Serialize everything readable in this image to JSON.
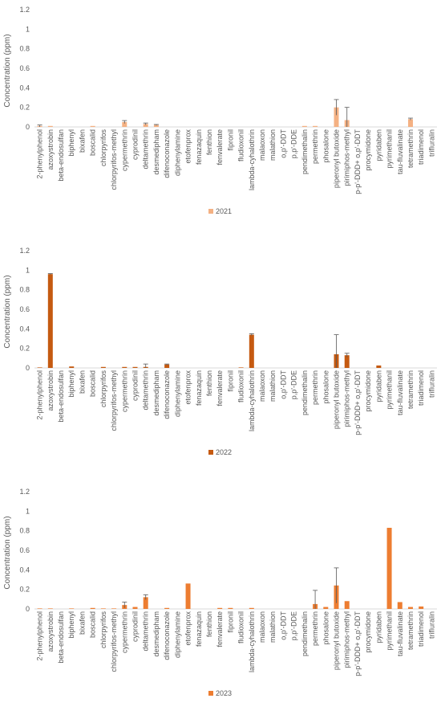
{
  "chart_data": [
    {
      "type": "bar",
      "title": "",
      "xlabel": "",
      "ylabel": "Concentration (ppm)",
      "ylim": [
        0,
        1.2
      ],
      "yticks": [
        "0",
        "0.2",
        "0.4",
        "0.6",
        "0.8",
        "1",
        "1.2"
      ],
      "categories": [
        "2-phenylphenol",
        "azoxystrobin",
        "beta-endosulfan",
        "biphenyl",
        "bixafen",
        "boscalid",
        "chlorpyrifos",
        "chlorpyrifos-methyl",
        "cypermethrin",
        "cyprodinil",
        "deltamethrin",
        "desmedipham",
        "difenoconazole",
        "diphenylamine",
        "etofenprox",
        "fenazaquin",
        "fenthion",
        "fenvalerate",
        "fipronil",
        "fludioxonil",
        "lambda-cyhalothrin",
        "malaoxon",
        "malathion",
        "o,p'-DDT",
        "p,p'-DDE",
        "pendimethalin",
        "permethrin",
        "phosalone",
        "piperonyl butoxide",
        "pirimiphos-methyl",
        "p-p'-DDD+ o,p'-DDT",
        "procymidone",
        "pyridaben",
        "pyrimethanil",
        "tau-fluvalinate",
        "tetramethrin",
        "triadimenol",
        "trifluralin"
      ],
      "series": [
        {
          "name": "2021",
          "color": "#f4b183",
          "values": [
            0.01,
            0.01,
            0,
            0,
            0,
            0.01,
            0,
            0,
            0.05,
            0,
            0.03,
            0.02,
            0,
            0,
            0,
            0,
            0,
            0,
            0,
            0,
            0,
            0,
            0,
            0,
            0,
            0.01,
            0.01,
            0,
            0.2,
            0.07,
            0,
            0,
            0,
            0,
            0,
            0.08,
            0,
            0
          ],
          "errors": [
            0.01,
            0,
            0,
            0,
            0,
            0,
            0,
            0,
            0.015,
            0,
            0.01,
            0.005,
            0,
            0,
            0,
            0,
            0,
            0,
            0,
            0,
            0,
            0,
            0,
            0,
            0,
            0,
            0,
            0,
            0.08,
            0.13,
            0,
            0,
            0,
            0,
            0,
            0.01,
            0,
            0
          ]
        }
      ],
      "legend": "bottom"
    },
    {
      "type": "bar",
      "title": "",
      "xlabel": "",
      "ylabel": "Concentration (ppm)",
      "ylim": [
        0,
        1.2
      ],
      "yticks": [
        "0",
        "0.2",
        "0.4",
        "0.6",
        "0.8",
        "1",
        "1.2"
      ],
      "categories": [
        "2-phenylphenol",
        "azoxystrobin",
        "beta-endosulfan",
        "biphenyl",
        "bixafen",
        "boscalid",
        "chlorpyrifos",
        "chlorpyrifos-methyl",
        "cypermethrin",
        "cyprodinil",
        "deltamethrin",
        "desmedipham",
        "difenoconazole",
        "diphenylamine",
        "etofenprox",
        "fenazaquin",
        "fenthion",
        "fenvalerate",
        "fipronil",
        "fludioxonil",
        "lambda-cyhalothrin",
        "malaoxon",
        "malathion",
        "o,p'-DDT",
        "p,p'-DDE",
        "pendimethalin",
        "permethrin",
        "phosalone",
        "piperonyl butoxide",
        "pirimiphos-methyl",
        "p-p'-DDD+ o,p'-DDT",
        "procymidone",
        "pyridaben",
        "pyrimethanil",
        "tau-fluvalinate",
        "tetramethrin",
        "triadimenol",
        "trifluralin"
      ],
      "series": [
        {
          "name": "2022",
          "color": "#c55a11",
          "values": [
            0.005,
            0.96,
            0,
            0.015,
            0,
            0,
            0.01,
            0,
            0.01,
            0.01,
            0.01,
            0,
            0.035,
            0,
            0,
            0,
            0,
            0,
            0,
            0.005,
            0.34,
            0,
            0,
            0,
            0,
            0,
            0,
            0,
            0.14,
            0.13,
            0,
            0,
            0.025,
            0,
            0,
            0,
            0,
            0
          ],
          "errors": [
            0,
            0.005,
            0,
            0,
            0,
            0,
            0,
            0,
            0,
            0,
            0.03,
            0,
            0.005,
            0,
            0,
            0,
            0,
            0,
            0,
            0,
            0.01,
            0,
            0,
            0,
            0,
            0,
            0,
            0,
            0.2,
            0.02,
            0,
            0,
            0,
            0,
            0,
            0,
            0,
            0
          ]
        }
      ],
      "legend": "bottom"
    },
    {
      "type": "bar",
      "title": "",
      "xlabel": "",
      "ylabel": "Concentration (ppm)",
      "ylim": [
        0,
        1.2
      ],
      "yticks": [
        "0",
        "0.2",
        "0.4",
        "0.6",
        "0.8",
        "1",
        "1.2"
      ],
      "categories": [
        "2-phenylphenol",
        "azoxystrobin",
        "beta-endosulfan",
        "biphenyl",
        "bixafen",
        "boscalid",
        "chlorpyrifos",
        "chlorpyrifos-methyl",
        "cypermethrin",
        "cyprodinil",
        "deltamethrin",
        "desmedipham",
        "difenoconazole",
        "diphenylamine",
        "etofenprox",
        "fenazaquin",
        "fenthion",
        "fenvalerate",
        "fipronil",
        "fludioxonil",
        "lambda-cyhalothrin",
        "malaoxon",
        "malathion",
        "o,p'-DDT",
        "p,p'-DDE",
        "pendimethalin",
        "permethrin",
        "phosalone",
        "piperonyl butoxide",
        "pirimiphos-methyl",
        "p-p'-DDD+ o,p'-DDT",
        "procymidone",
        "pyridaben",
        "pyrimethanil",
        "tau-fluvalinate",
        "tetramethrin",
        "triadimenol",
        "trifluralin"
      ],
      "series": [
        {
          "name": "2023",
          "color": "#ed7d31",
          "values": [
            0.005,
            0.005,
            0,
            0.005,
            0,
            0.01,
            0.005,
            0.005,
            0.04,
            0.02,
            0.12,
            0,
            0.01,
            0,
            0.26,
            0,
            0,
            0.01,
            0.01,
            0,
            0.01,
            0,
            0,
            0,
            0,
            0,
            0.05,
            0.02,
            0.24,
            0.08,
            0,
            0,
            0,
            0.83,
            0.07,
            0.02,
            0.025,
            0
          ],
          "errors": [
            0,
            0,
            0,
            0,
            0,
            0,
            0,
            0,
            0.03,
            0,
            0.025,
            0,
            0,
            0,
            0,
            0,
            0,
            0,
            0,
            0,
            0,
            0,
            0,
            0,
            0,
            0,
            0.14,
            0,
            0.18,
            0,
            0,
            0,
            0,
            0,
            0,
            0,
            0,
            0
          ]
        }
      ],
      "legend": "bottom"
    }
  ]
}
